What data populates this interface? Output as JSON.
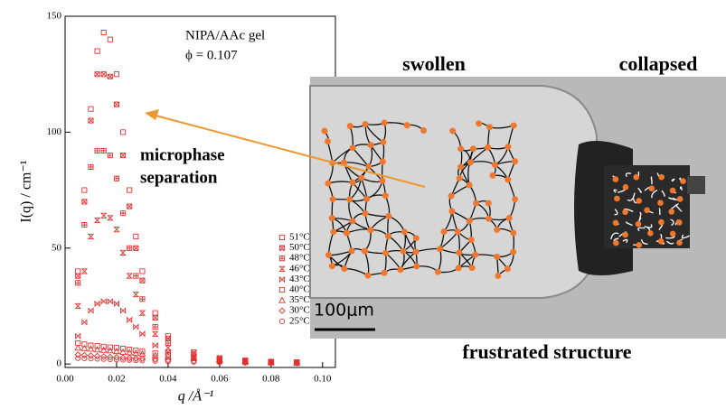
{
  "chart_data": {
    "type": "scatter",
    "x_label": "q /Å⁻¹",
    "y_label": "I(q) / cm⁻¹",
    "annotations": [
      "NIPA/AAc gel",
      "ϕ = 0.107",
      "microphase",
      "separation"
    ],
    "xlim": [
      0,
      0.105
    ],
    "ylim": [
      -1.5,
      150
    ],
    "xticks": [
      {
        "value": 0,
        "label": "0.00"
      },
      {
        "value": 0.02,
        "label": "0.02"
      },
      {
        "value": 0.04,
        "label": "0.04"
      },
      {
        "value": 0.06,
        "label": "0.06"
      },
      {
        "value": 0.08,
        "label": "0.08"
      },
      {
        "value": 0.1,
        "label": "0.10"
      }
    ],
    "yticks": [
      0,
      50,
      100,
      150
    ],
    "x": [
      0.005,
      0.0075,
      0.01,
      0.0125,
      0.015,
      0.0175,
      0.02,
      0.0225,
      0.025,
      0.0275,
      0.03,
      0.035,
      0.04,
      0.05,
      0.06,
      0.07,
      0.08,
      0.09
    ],
    "series": [
      {
        "name": "51°C",
        "color": "#e2302e",
        "marker": "square",
        "values": [
          40,
          75,
          110,
          135,
          143,
          140,
          125,
          100,
          75,
          55,
          40,
          22,
          12,
          5,
          2.5,
          1.5,
          1,
          0.7
        ]
      },
      {
        "name": "50°C",
        "color": "#e2302e",
        "marker": "square-x",
        "values": [
          38,
          70,
          105,
          125,
          125,
          124,
          112,
          90,
          68,
          50,
          36,
          20,
          11,
          5,
          2.5,
          1.5,
          1,
          0.7
        ]
      },
      {
        "name": "48°C",
        "color": "#e2302e",
        "marker": "square-plus",
        "values": [
          35,
          60,
          85,
          92,
          92,
          90,
          80,
          65,
          50,
          38,
          28,
          16,
          9,
          4,
          2,
          1.2,
          0.8,
          0.6
        ]
      },
      {
        "name": "46°C",
        "color": "#e2302e",
        "marker": "hourglass",
        "values": [
          25,
          40,
          55,
          62,
          64,
          63,
          58,
          48,
          38,
          30,
          22,
          13,
          7,
          3,
          1.5,
          1,
          0.7,
          0.5
        ]
      },
      {
        "name": "43°C",
        "color": "#e2302e",
        "marker": "bowtie",
        "values": [
          12,
          18,
          23,
          26,
          27,
          27,
          26,
          23,
          19,
          16,
          13,
          8,
          5,
          2.5,
          1.5,
          1,
          0.6,
          0.4
        ]
      },
      {
        "name": "40°C",
        "color": "#e2302e",
        "marker": "square",
        "values": [
          9,
          8.5,
          8,
          7.8,
          7.5,
          7.2,
          7,
          6.6,
          6.2,
          5.8,
          5.4,
          4.6,
          3.9,
          2.8,
          2,
          1.4,
          1,
          0.7
        ]
      },
      {
        "name": "35°C",
        "color": "#e2302e",
        "marker": "triangle",
        "values": [
          7,
          6.8,
          6.5,
          6.2,
          6,
          5.8,
          5.5,
          5.2,
          5,
          4.7,
          4.4,
          3.8,
          3.2,
          2.4,
          1.7,
          1.2,
          0.9,
          0.6
        ]
      },
      {
        "name": "30°C",
        "color": "#e2302e",
        "marker": "diamond",
        "values": [
          4,
          3.8,
          3.6,
          3.4,
          3.2,
          3,
          2.9,
          2.7,
          2.6,
          2.4,
          2.3,
          2,
          1.7,
          1.3,
          1,
          0.7,
          0.5,
          0.4
        ]
      },
      {
        "name": "25°C",
        "color": "#e2302e",
        "marker": "circle",
        "values": [
          2.5,
          2.4,
          2.3,
          2.2,
          2.1,
          2,
          1.9,
          1.8,
          1.7,
          1.6,
          1.5,
          1.3,
          1.1,
          0.9,
          0.7,
          0.5,
          0.4,
          0.3
        ]
      }
    ]
  },
  "image_labels": {
    "left": "swollen",
    "right": "collapsed",
    "scale_bar": "100μm",
    "caption": "frustrated structure"
  }
}
